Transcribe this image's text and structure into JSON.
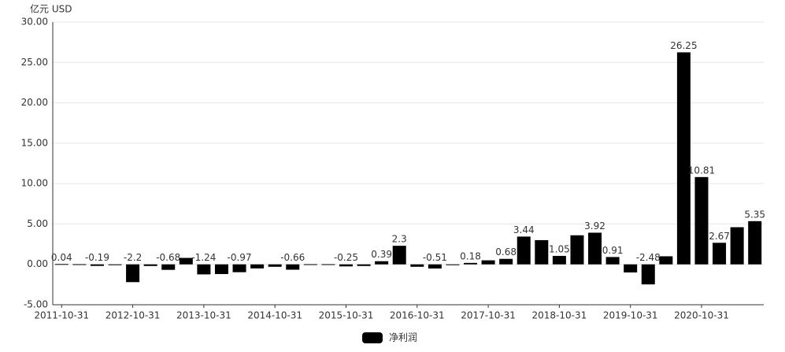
{
  "chart_data": {
    "type": "bar",
    "y_axis_label": "亿元  USD",
    "categories": [
      "2011-10-31",
      null,
      null,
      null,
      "2012-10-31",
      null,
      null,
      null,
      "2013-10-31",
      null,
      null,
      null,
      "2014-10-31",
      null,
      null,
      null,
      "2015-10-31",
      null,
      null,
      null,
      "2016-10-31",
      null,
      null,
      null,
      "2017-10-31",
      null,
      null,
      null,
      "2018-10-31",
      null,
      null,
      null,
      "2019-10-31",
      null,
      null,
      null,
      "2020-10-31",
      null,
      null,
      null
    ],
    "series": [
      {
        "name": "净利润",
        "color": "#000000",
        "values": [
          0.04,
          0.02,
          -0.19,
          -0.1,
          -2.2,
          -0.2,
          -0.68,
          0.8,
          -1.24,
          -1.2,
          -0.97,
          -0.5,
          -0.3,
          -0.66,
          0.02,
          0.02,
          -0.25,
          -0.2,
          0.39,
          2.3,
          -0.3,
          -0.51,
          -0.1,
          0.18,
          0.5,
          0.68,
          3.44,
          3.0,
          1.05,
          3.6,
          3.92,
          0.91,
          -1.0,
          -2.48,
          1.0,
          26.25,
          10.81,
          2.67,
          4.6,
          5.35
        ],
        "value_labels": [
          "0.04",
          null,
          "-0.19",
          null,
          "-2.2",
          null,
          "-0.68",
          null,
          "-1.24",
          null,
          "-0.97",
          null,
          null,
          "-0.66",
          null,
          null,
          "-0.25",
          null,
          "0.39",
          "2.3",
          null,
          "-0.51",
          null,
          "0.18",
          null,
          "0.68",
          "3.44",
          null,
          "1.05",
          null,
          "3.92",
          "0.91",
          null,
          "-2.48",
          null,
          "26.25",
          "10.81",
          "2.67",
          null,
          "5.35"
        ]
      }
    ],
    "ylim": [
      -5,
      30
    ],
    "yticks": [
      {
        "value": -5,
        "label": "-5.00"
      },
      {
        "value": 0,
        "label": "0.00"
      },
      {
        "value": 5,
        "label": "5.00"
      },
      {
        "value": 10,
        "label": "10.00"
      },
      {
        "value": 15,
        "label": "15.00"
      },
      {
        "value": 20,
        "label": "20.00"
      },
      {
        "value": 25,
        "label": "25.00"
      },
      {
        "value": 30,
        "label": "30.00"
      }
    ],
    "grid": true
  }
}
